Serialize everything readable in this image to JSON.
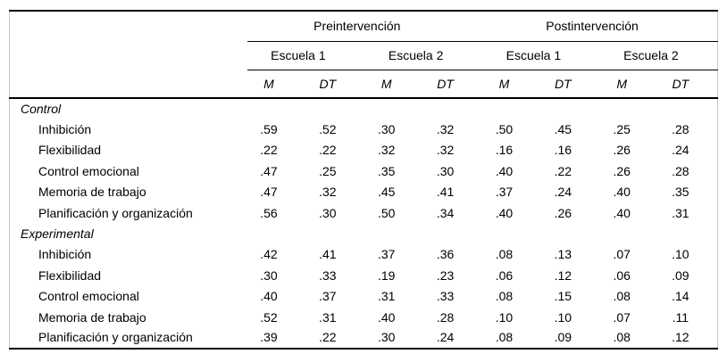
{
  "table": {
    "column_groups": [
      "Preintervención",
      "Postintervención"
    ],
    "school_headers": [
      "Escuela 1",
      "Escuela 2",
      "Escuela 1",
      "Escuela 2"
    ],
    "measure_headers": [
      "M",
      "DT",
      "M",
      "DT",
      "M",
      "DT",
      "M",
      "DT"
    ],
    "sections": [
      {
        "label": "Control",
        "rows": [
          {
            "label": "Inhibición",
            "values": [
              ".59",
              ".52",
              ".30",
              ".32",
              ".50",
              ".45",
              ".25",
              ".28"
            ]
          },
          {
            "label": "Flexibilidad",
            "values": [
              ".22",
              ".22",
              ".32",
              ".32",
              ".16",
              ".16",
              ".26",
              ".24"
            ]
          },
          {
            "label": "Control emocional",
            "values": [
              ".47",
              ".25",
              ".35",
              ".30",
              ".40",
              ".22",
              ".26",
              ".28"
            ]
          },
          {
            "label": "Memoria de trabajo",
            "values": [
              ".47",
              ".32",
              ".45",
              ".41",
              ".37",
              ".24",
              ".40",
              ".35"
            ]
          },
          {
            "label": "Planificación y organización",
            "values": [
              ".56",
              ".30",
              ".50",
              ".34",
              ".40",
              ".26",
              ".40",
              ".31"
            ]
          }
        ]
      },
      {
        "label": "Experimental",
        "rows": [
          {
            "label": "Inhibición",
            "values": [
              ".42",
              ".41",
              ".37",
              ".36",
              ".08",
              ".13",
              ".07",
              ".10"
            ]
          },
          {
            "label": "Flexibilidad",
            "values": [
              ".30",
              ".33",
              ".19",
              ".23",
              ".06",
              ".12",
              ".06",
              ".09"
            ]
          },
          {
            "label": "Control emocional",
            "values": [
              ".40",
              ".37",
              ".31",
              ".33",
              ".08",
              ".15",
              ".08",
              ".14"
            ]
          },
          {
            "label": "Memoria de trabajo",
            "values": [
              ".52",
              ".31",
              ".40",
              ".28",
              ".10",
              ".10",
              ".07",
              ".11"
            ]
          },
          {
            "label": "Planificación y organización",
            "values": [
              ".39",
              ".22",
              ".30",
              ".24",
              ".08",
              ".09",
              ".08",
              ".12"
            ]
          }
        ]
      }
    ]
  }
}
